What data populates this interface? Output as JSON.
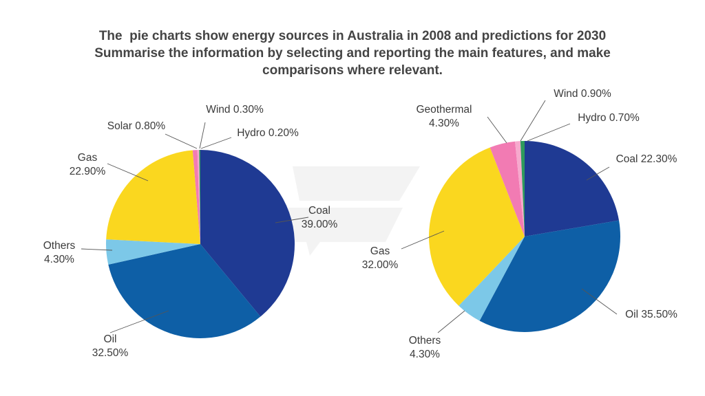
{
  "title": {
    "line1": "The  pie charts show energy sources in Australia in 2008 and predictions for 2030",
    "line2": "Summarise the information by selecting and reporting the main features, and make",
    "line3": "comparisons where relevant."
  },
  "chart_data": [
    {
      "type": "pie",
      "title": "",
      "slices": [
        {
          "label": "Coal",
          "value": 39.0,
          "display": "39.00%",
          "color": "#1f3a93"
        },
        {
          "label": "Oil",
          "value": 32.5,
          "display": "32.50%",
          "color": "#0e5fa6"
        },
        {
          "label": "Others",
          "value": 4.3,
          "display": "4.30%",
          "color": "#7cc8e8"
        },
        {
          "label": "Gas",
          "value": 22.9,
          "display": "22.90%",
          "color": "#fad71f"
        },
        {
          "label": "Solar",
          "value": 0.8,
          "display": "0.80%",
          "color": "#f27bb3"
        },
        {
          "label": "Wind",
          "value": 0.3,
          "display": "0.30%",
          "color": "#f6a9cd"
        },
        {
          "label": "Hydro",
          "value": 0.2,
          "display": "0.20%",
          "color": "#2e9a5c"
        }
      ]
    },
    {
      "type": "pie",
      "title": "",
      "slices": [
        {
          "label": "Coal",
          "value": 22.3,
          "display": "22.30%",
          "color": "#1f3a93"
        },
        {
          "label": "Oil",
          "value": 35.5,
          "display": "35.50%",
          "color": "#0e5fa6"
        },
        {
          "label": "Others",
          "value": 4.3,
          "display": "4.30%",
          "color": "#7cc8e8"
        },
        {
          "label": "Gas",
          "value": 32.0,
          "display": "32.00%",
          "color": "#fad71f"
        },
        {
          "label": "Geothermal",
          "value": 4.3,
          "display": "4.30%",
          "color": "#f27bb3"
        },
        {
          "label": "Wind",
          "value": 0.9,
          "display": "0.90%",
          "color": "#f6a9cd"
        },
        {
          "label": "Hydro",
          "value": 0.7,
          "display": "0.70%",
          "color": "#2e9a5c"
        }
      ]
    }
  ]
}
